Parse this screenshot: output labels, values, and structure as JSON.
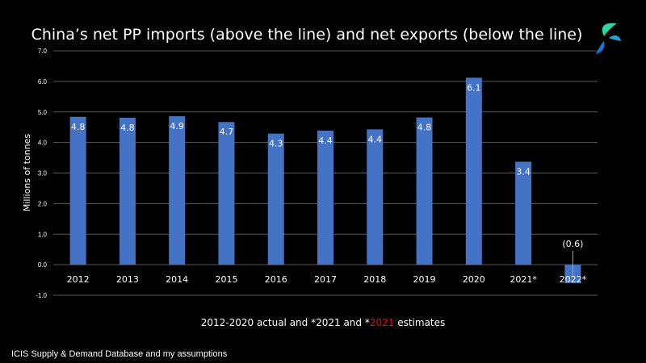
{
  "colors": {
    "background": "#000000",
    "bar": "#4472c4",
    "text": "#ffffff",
    "gridline": "#595959",
    "highlight": "#ff0000"
  },
  "logo": {
    "icon": "icis-logo-icon"
  },
  "subtitle": {
    "part1": "2012-2020 actual and *2021 and *",
    "highlight": "2021",
    "part2": " estimates"
  },
  "source": "ICIS Supply  & Demand Database and my assumptions",
  "chart_data": {
    "type": "bar",
    "title": "China’s net PP imports (above the line) and net exports (below the line)",
    "ylabel": "Millions of tonnes",
    "xlabel": "",
    "categories": [
      "2012",
      "2013",
      "2014",
      "2015",
      "2016",
      "2017",
      "2018",
      "2019",
      "2020",
      "2021*",
      "2022*"
    ],
    "values": [
      4.84,
      4.81,
      4.86,
      4.67,
      4.29,
      4.39,
      4.43,
      4.82,
      6.12,
      3.37,
      -0.6
    ],
    "data_labels": [
      "4.8",
      "4.8",
      "4.9",
      "4.7",
      "4.3",
      "4.4",
      "4.4",
      "4.8",
      "6.1",
      "3.4",
      "(0.6)"
    ],
    "ylim": [
      -1,
      7
    ],
    "yticks": [
      "-1.0",
      "0.0",
      "1.0",
      "2.0",
      "3.0",
      "4.0",
      "5.0",
      "6.0",
      "7.0"
    ],
    "grid": true,
    "legend": "none"
  }
}
